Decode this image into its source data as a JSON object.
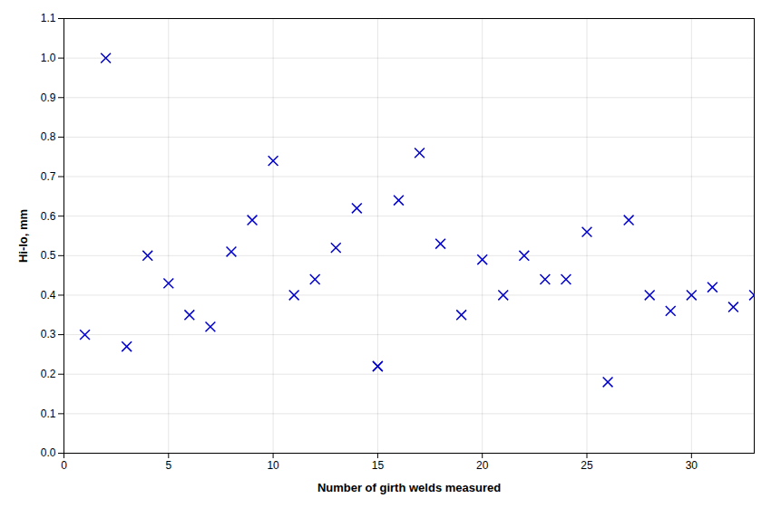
{
  "chart_data": {
    "type": "scatter",
    "x": [
      1,
      2,
      3,
      4,
      5,
      6,
      7,
      8,
      9,
      10,
      11,
      12,
      13,
      14,
      15,
      15,
      16,
      17,
      18,
      19,
      20,
      21,
      22,
      23,
      24,
      25,
      26,
      27,
      28,
      29,
      30,
      31,
      32,
      33
    ],
    "values": [
      0.3,
      1.0,
      0.27,
      0.5,
      0.43,
      0.35,
      0.32,
      0.51,
      0.59,
      0.74,
      0.4,
      0.44,
      0.52,
      0.62,
      0.22,
      0.22,
      0.64,
      0.76,
      0.53,
      0.35,
      0.49,
      0.4,
      0.5,
      0.44,
      0.44,
      0.56,
      0.18,
      0.59,
      0.4,
      0.36,
      0.4,
      0.42,
      0.37,
      0.4
    ],
    "marker": "x",
    "color": "#0000CC",
    "xlabel": "Number of girth welds measured",
    "ylabel": "Hi-lo, mm",
    "xlim": [
      0,
      33
    ],
    "ylim": [
      0.0,
      1.1
    ],
    "xticks": [
      0,
      5,
      10,
      15,
      20,
      25,
      30
    ],
    "yticks": [
      {
        "value": 0.0,
        "label": "0.0"
      },
      0.1,
      0.2,
      0.3,
      0.4,
      0.5,
      0.6,
      0.7,
      0.8,
      0.9,
      {
        "value": 1.0,
        "label": "1.0"
      },
      1.1
    ],
    "grid": true
  }
}
